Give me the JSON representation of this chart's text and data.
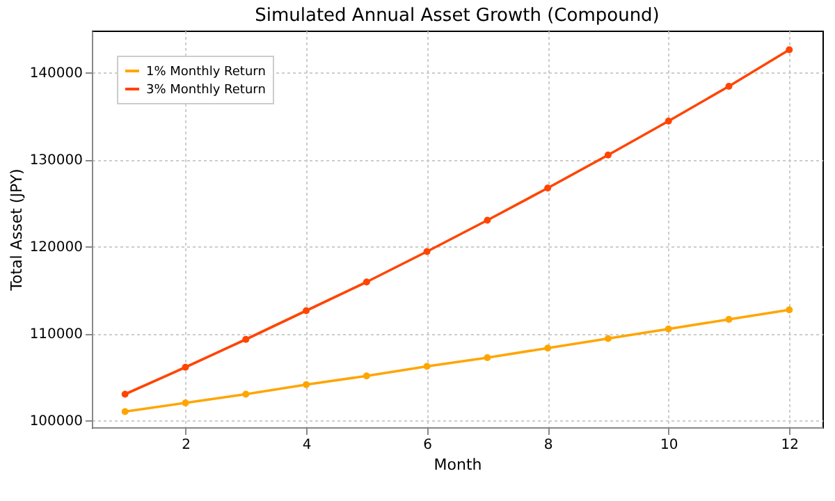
{
  "chart_data": {
    "type": "line",
    "title": "Simulated Annual Asset Growth (Compound)",
    "xlabel": "Month",
    "ylabel": "Total Asset (JPY)",
    "x": [
      1,
      2,
      3,
      4,
      5,
      6,
      7,
      8,
      9,
      10,
      11,
      12
    ],
    "series": [
      {
        "name": "1% Monthly Return",
        "color": "#ffa500",
        "values": [
          101000,
          102000,
          103000,
          104100,
          105100,
          106200,
          107200,
          108300,
          109400,
          110500,
          111600,
          112700
        ]
      },
      {
        "name": "3% Monthly Return",
        "color": "#ff4500",
        "values": [
          103000,
          106100,
          109300,
          112600,
          115900,
          119400,
          123000,
          126700,
          130500,
          134400,
          138400,
          142600
        ]
      }
    ],
    "xlim": [
      0.45,
      12.55
    ],
    "xticks": [
      2,
      4,
      6,
      8,
      10,
      12
    ],
    "ylim": [
      99200,
      144800
    ],
    "yticks": [
      100000,
      110000,
      120000,
      130000,
      140000
    ],
    "grid": true,
    "legend": "top left",
    "marker": "circle",
    "line_style": "solid"
  }
}
